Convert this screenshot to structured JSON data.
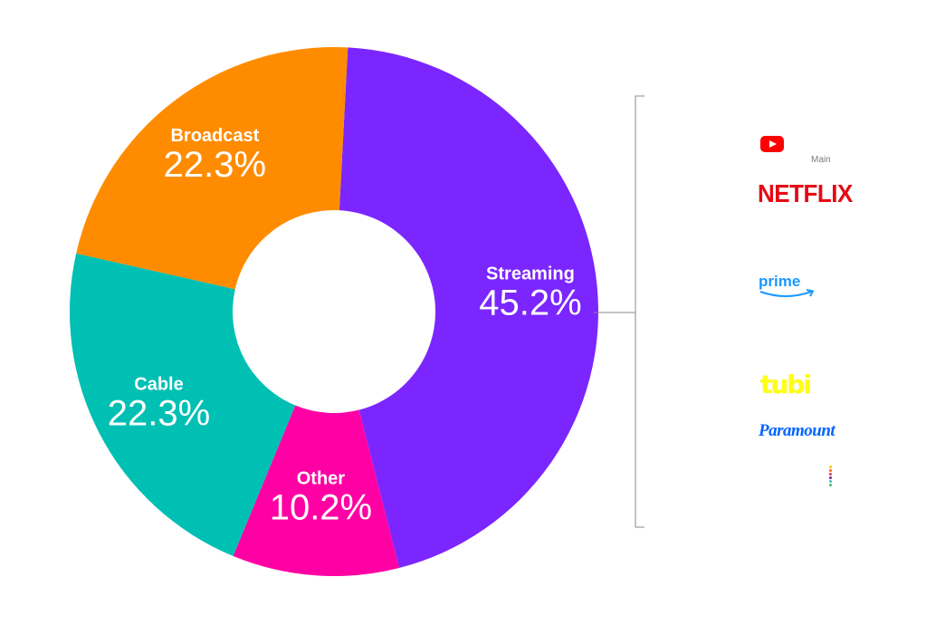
{
  "chart_data": {
    "type": "donut",
    "slices": [
      {
        "label": "Streaming",
        "value": 45.2,
        "display": "45.2%",
        "color": "#7b26ff"
      },
      {
        "label": "Other",
        "value": 10.2,
        "display": "10.2%",
        "color": "#ff00a4"
      },
      {
        "label": "Cable",
        "value": 22.3,
        "display": "22.3%",
        "color": "#00bfb3"
      },
      {
        "label": "Broadcast",
        "value": 22.3,
        "display": "22.3%",
        "color": "#ff8c00"
      }
    ],
    "start_angle_deg": 3
  },
  "annotation": {
    "bracket_color": "#8a8a8a",
    "logos": [
      {
        "name": "youtube-logo",
        "sub_text": "Main"
      },
      {
        "name": "netflix-logo",
        "text": "NETFLIX",
        "color": "#e50914"
      },
      {
        "name": "prime-video-logo",
        "text": "prime",
        "color": "#1a98ff"
      },
      {
        "name": "tubi-logo",
        "text": "tubi",
        "color": "#ffff13"
      },
      {
        "name": "paramount-logo",
        "text": "Paramount",
        "color": "#0064ff"
      },
      {
        "name": "peacock-logo",
        "colors": [
          "#f9c80e",
          "#f86624",
          "#ea3546",
          "#662e9b",
          "#43bccd",
          "#2ec866"
        ]
      }
    ]
  }
}
